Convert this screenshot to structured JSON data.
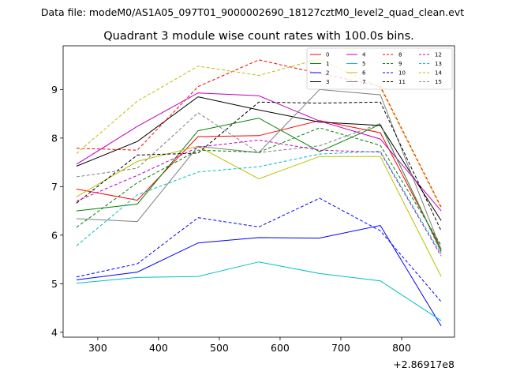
{
  "figure": {
    "suptitle": "Data file: modeM0/AS1A05_097T01_9000002690_18127cztM0_level2_quad_clean.evt"
  },
  "chart_data": {
    "type": "line",
    "title": "Quadrant 3 module wise count rates with 100.0s bins.",
    "xlabel": "",
    "ylabel": "",
    "x_offset_label": "+2.86917e8",
    "x": [
      265,
      365,
      465,
      565,
      665,
      765,
      865
    ],
    "xlim": [
      243,
      887
    ],
    "ylim": [
      3.9,
      9.9
    ],
    "xticks": [
      300,
      400,
      500,
      600,
      700,
      800
    ],
    "xtick_labels": [
      "300",
      "400",
      "500",
      "600",
      "700",
      "800"
    ],
    "yticks": [
      4,
      5,
      6,
      7,
      8,
      9
    ],
    "ytick_labels": [
      "4",
      "5",
      "6",
      "7",
      "8",
      "9"
    ],
    "grid": false,
    "legend_placement": "top-right",
    "legend_columns": 4,
    "series": [
      {
        "name": "0",
        "color": "#ff0000",
        "dashed": false,
        "values": [
          6.95,
          6.72,
          8.03,
          8.05,
          8.36,
          8.11,
          5.72
        ]
      },
      {
        "name": "1",
        "color": "#008000",
        "dashed": false,
        "values": [
          6.5,
          6.64,
          8.15,
          8.41,
          7.72,
          8.28,
          5.67
        ]
      },
      {
        "name": "2",
        "color": "#0000ff",
        "dashed": false,
        "values": [
          5.08,
          5.24,
          5.84,
          5.95,
          5.94,
          6.2,
          4.13
        ]
      },
      {
        "name": "3",
        "color": "#000000",
        "dashed": false,
        "values": [
          7.42,
          7.93,
          8.85,
          8.58,
          8.33,
          8.26,
          6.3
        ]
      },
      {
        "name": "4",
        "color": "#bf00bf",
        "dashed": false,
        "values": [
          7.46,
          8.24,
          8.93,
          8.87,
          8.35,
          7.98,
          6.5
        ]
      },
      {
        "name": "5",
        "color": "#00bfbf",
        "dashed": false,
        "values": [
          5.01,
          5.13,
          5.15,
          5.45,
          5.21,
          5.06,
          4.24
        ]
      },
      {
        "name": "6",
        "color": "#bfbf00",
        "dashed": false,
        "values": [
          6.79,
          7.52,
          7.83,
          7.16,
          7.62,
          7.62,
          5.15
        ]
      },
      {
        "name": "7",
        "color": "#808080",
        "dashed": false,
        "values": [
          6.34,
          6.28,
          7.83,
          7.7,
          9.0,
          8.89,
          5.7
        ]
      },
      {
        "name": "8",
        "color": "#ff0000",
        "dashed": true,
        "values": [
          7.79,
          7.75,
          9.06,
          9.61,
          9.33,
          9.07,
          6.58
        ]
      },
      {
        "name": "9",
        "color": "#008000",
        "dashed": true,
        "values": [
          6.16,
          7.08,
          7.75,
          7.71,
          8.21,
          7.85,
          5.79
        ]
      },
      {
        "name": "10",
        "color": "#0000ff",
        "dashed": true,
        "values": [
          5.14,
          5.41,
          6.36,
          6.17,
          6.76,
          6.09,
          4.63
        ]
      },
      {
        "name": "11",
        "color": "#000000",
        "dashed": true,
        "values": [
          6.66,
          7.65,
          7.69,
          8.74,
          8.72,
          8.74,
          6.09
        ]
      },
      {
        "name": "12",
        "color": "#bf00bf",
        "dashed": true,
        "values": [
          6.7,
          7.23,
          7.81,
          7.96,
          7.75,
          7.71,
          5.57
        ]
      },
      {
        "name": "13",
        "color": "#00bfbf",
        "dashed": true,
        "values": [
          5.78,
          6.83,
          7.3,
          7.41,
          7.67,
          7.73,
          5.61
        ]
      },
      {
        "name": "14",
        "color": "#bfbf00",
        "dashed": true,
        "values": [
          7.68,
          8.76,
          9.48,
          9.29,
          9.63,
          9.04,
          6.55
        ]
      },
      {
        "name": "15",
        "color": "#808080",
        "dashed": true,
        "values": [
          7.2,
          7.38,
          8.52,
          7.7,
          7.84,
          8.3,
          5.64
        ]
      }
    ]
  }
}
